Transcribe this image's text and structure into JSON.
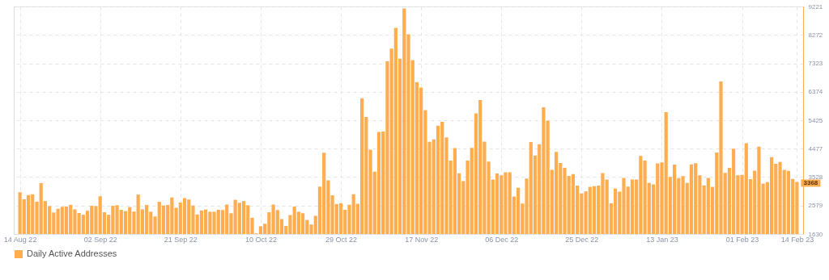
{
  "chart_data": {
    "type": "bar",
    "x": [
      "2022-08-14",
      "2022-08-15",
      "2022-08-16",
      "2022-08-17",
      "2022-08-18",
      "2022-08-19",
      "2022-08-20",
      "2022-08-21",
      "2022-08-22",
      "2022-08-23",
      "2022-08-24",
      "2022-08-25",
      "2022-08-26",
      "2022-08-27",
      "2022-08-28",
      "2022-08-29",
      "2022-08-30",
      "2022-08-31",
      "2022-09-01",
      "2022-09-02",
      "2022-09-03",
      "2022-09-04",
      "2022-09-05",
      "2022-09-06",
      "2022-09-07",
      "2022-09-08",
      "2022-09-09",
      "2022-09-10",
      "2022-09-11",
      "2022-09-12",
      "2022-09-13",
      "2022-09-14",
      "2022-09-15",
      "2022-09-16",
      "2022-09-17",
      "2022-09-18",
      "2022-09-19",
      "2022-09-20",
      "2022-09-21",
      "2022-09-22",
      "2022-09-23",
      "2022-09-24",
      "2022-09-25",
      "2022-09-26",
      "2022-09-27",
      "2022-09-28",
      "2022-09-29",
      "2022-09-30",
      "2022-10-01",
      "2022-10-02",
      "2022-10-03",
      "2022-10-04",
      "2022-10-05",
      "2022-10-06",
      "2022-10-07",
      "2022-10-08",
      "2022-10-09",
      "2022-10-10",
      "2022-10-11",
      "2022-10-12",
      "2022-10-13",
      "2022-10-14",
      "2022-10-15",
      "2022-10-16",
      "2022-10-17",
      "2022-10-18",
      "2022-10-19",
      "2022-10-20",
      "2022-10-21",
      "2022-10-22",
      "2022-10-23",
      "2022-10-24",
      "2022-10-25",
      "2022-10-26",
      "2022-10-27",
      "2022-10-28",
      "2022-10-29",
      "2022-10-30",
      "2022-10-31",
      "2022-11-01",
      "2022-11-02",
      "2022-11-03",
      "2022-11-04",
      "2022-11-05",
      "2022-11-06",
      "2022-11-07",
      "2022-11-08",
      "2022-11-09",
      "2022-11-10",
      "2022-11-11",
      "2022-11-12",
      "2022-11-13",
      "2022-11-14",
      "2022-11-15",
      "2022-11-16",
      "2022-11-17",
      "2022-11-18",
      "2022-11-19",
      "2022-11-20",
      "2022-11-21",
      "2022-11-22",
      "2022-11-23",
      "2022-11-24",
      "2022-11-25",
      "2022-11-26",
      "2022-11-27",
      "2022-11-28",
      "2022-11-29",
      "2022-11-30",
      "2022-12-01",
      "2022-12-02",
      "2022-12-03",
      "2022-12-04",
      "2022-12-05",
      "2022-12-06",
      "2022-12-07",
      "2022-12-08",
      "2022-12-09",
      "2022-12-10",
      "2022-12-11",
      "2022-12-12",
      "2022-12-13",
      "2022-12-14",
      "2022-12-15",
      "2022-12-16",
      "2022-12-17",
      "2022-12-18",
      "2022-12-19",
      "2022-12-20",
      "2022-12-21",
      "2022-12-22",
      "2022-12-23",
      "2022-12-24",
      "2022-12-25",
      "2022-12-26",
      "2022-12-27",
      "2022-12-28",
      "2022-12-29",
      "2022-12-30",
      "2022-12-31",
      "2023-01-01",
      "2023-01-02",
      "2023-01-03",
      "2023-01-04",
      "2023-01-05",
      "2023-01-06",
      "2023-01-07",
      "2023-01-08",
      "2023-01-09",
      "2023-01-10",
      "2023-01-11",
      "2023-01-12",
      "2023-01-13",
      "2023-01-14",
      "2023-01-15",
      "2023-01-16",
      "2023-01-17",
      "2023-01-18",
      "2023-01-19",
      "2023-01-20",
      "2023-01-21",
      "2023-01-22",
      "2023-01-23",
      "2023-01-24",
      "2023-01-25",
      "2023-01-26",
      "2023-01-27",
      "2023-01-28",
      "2023-01-29",
      "2023-01-30",
      "2023-01-31",
      "2023-02-01",
      "2023-02-02",
      "2023-02-03",
      "2023-02-04",
      "2023-02-05",
      "2023-02-06",
      "2023-02-07",
      "2023-02-08",
      "2023-02-09",
      "2023-02-10",
      "2023-02-11",
      "2023-02-12",
      "2023-02-13",
      "2023-02-14"
    ],
    "series": [
      {
        "name": "Daily Active Addresses",
        "color": "#ffad4f",
        "values": [
          3022,
          2787,
          2928,
          2955,
          2705,
          3330,
          2730,
          2562,
          2347,
          2472,
          2537,
          2547,
          2605,
          2455,
          2330,
          2272,
          2405,
          2572,
          2562,
          2888,
          2355,
          2272,
          2572,
          2590,
          2437,
          2397,
          2530,
          2380,
          2946,
          2455,
          2597,
          2372,
          2215,
          2705,
          2580,
          2597,
          2846,
          2505,
          2680,
          2830,
          2780,
          2580,
          2280,
          2413,
          2447,
          2372,
          2372,
          2437,
          2430,
          2613,
          2322,
          2772,
          2672,
          2730,
          2590,
          2172,
          1650,
          1888,
          1972,
          2355,
          2613,
          2430,
          2130,
          1897,
          2262,
          2547,
          2372,
          2322,
          2097,
          1947,
          2237,
          3210,
          4340,
          3420,
          2920,
          2630,
          2655,
          2437,
          2605,
          2955,
          2638,
          6157,
          5532,
          4440,
          3712,
          5033,
          5050,
          7390,
          7815,
          8505,
          7480,
          9155,
          8290,
          7430,
          6700,
          6515,
          5762,
          4705,
          4787,
          5247,
          5372,
          4855,
          4080,
          4497,
          3655,
          3397,
          4080,
          4505,
          5655,
          6097,
          4712,
          4047,
          3447,
          3647,
          3588,
          3688,
          3688,
          2880,
          3172,
          2647,
          3480,
          4697,
          4247,
          4622,
          5855,
          5412,
          3769,
          4368,
          4002,
          3836,
          3569,
          3628,
          3245,
          2987,
          3053,
          3203,
          3228,
          3245,
          3661,
          3445,
          2654,
          3145,
          3045,
          3503,
          3211,
          3445,
          3445,
          4235,
          4077,
          3336,
          3286,
          3985,
          4019,
          5692,
          3536,
          3944,
          3494,
          3561,
          3336,
          3952,
          3994,
          3586,
          3253,
          3503,
          3203,
          4352,
          6715,
          3669,
          3836,
          4476,
          3586,
          3603,
          4660,
          3461,
          3744,
          4543,
          3311,
          3361,
          4194,
          3969,
          4035,
          3769,
          3736,
          3470,
          3368
        ]
      }
    ],
    "xlim": [
      "2022-08-13T12:00",
      "2023-02-14T12:00"
    ],
    "xticks": [
      {
        "value": "2022-08-14",
        "label": "14 Aug 22"
      },
      {
        "value": "2022-09-02",
        "label": "02 Sep 22"
      },
      {
        "value": "2022-09-21",
        "label": "21 Sep 22"
      },
      {
        "value": "2022-10-10",
        "label": "10 Oct 22"
      },
      {
        "value": "2022-10-29",
        "label": "29 Oct 22"
      },
      {
        "value": "2022-11-17",
        "label": "17 Nov 22"
      },
      {
        "value": "2022-12-06",
        "label": "06 Dec 22"
      },
      {
        "value": "2022-12-25",
        "label": "25 Dec 22"
      },
      {
        "value": "2023-01-13",
        "label": "13 Jan 23"
      },
      {
        "value": "2023-02-01",
        "label": "01 Feb 23"
      },
      {
        "value": "2023-02-14",
        "label": "14 Feb 23"
      }
    ],
    "ylim": [
      1630,
      9221
    ],
    "yticks": [
      1630,
      2579,
      3528,
      4477,
      5425,
      6374,
      7323,
      8272,
      9221
    ],
    "annotations": [
      {
        "text": "3368",
        "x": "2023-02-14",
        "y": 3368
      }
    ],
    "grid": true,
    "legend": "bottom"
  }
}
